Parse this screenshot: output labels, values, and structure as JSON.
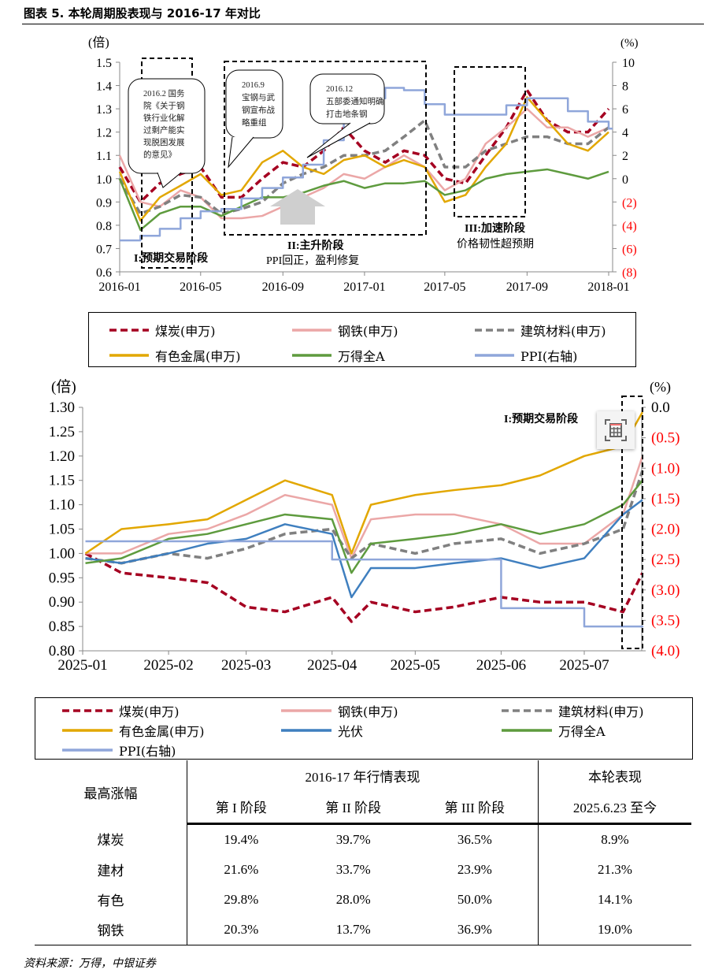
{
  "title": "图表 5. 本轮周期股表现与 2016-17 年对比",
  "colors": {
    "coal": "#A50021",
    "steel": "#EBA7A7",
    "building": "#808080",
    "nonferrous": "#E2A700",
    "winda": "#5E9B3E",
    "ppi": "#8FA6DA",
    "pv": "#3F7FBF",
    "negative_tick": "#FF0000"
  },
  "chart_data": [
    {
      "type": "line",
      "ylabel_left": "(倍)",
      "ylabel_right": "(%)",
      "x_ticks": [
        "2016-01",
        "2016-05",
        "2016-09",
        "2017-01",
        "2017-05",
        "2017-09",
        "2018-01"
      ],
      "ylim_left": [
        0.6,
        1.5
      ],
      "y_ticks_left": [
        "0.6",
        "0.7",
        "0.8",
        "0.9",
        "1.0",
        "1.1",
        "1.2",
        "1.3",
        "1.4",
        "1.5"
      ],
      "ylim_right": [
        -8,
        10
      ],
      "y_ticks_right": [
        "(8)",
        "(6)",
        "(4)",
        "(2)",
        "0",
        "2",
        "4",
        "6",
        "8",
        "10"
      ],
      "x": [
        "2016-01",
        "2016-02",
        "2016-03",
        "2016-04",
        "2016-05",
        "2016-06",
        "2016-07",
        "2016-08",
        "2016-09",
        "2016-10",
        "2016-11",
        "2016-12",
        "2017-01",
        "2017-02",
        "2017-03",
        "2017-04",
        "2017-05",
        "2017-06",
        "2017-07",
        "2017-08",
        "2017-09",
        "2017-10",
        "2017-11",
        "2017-12",
        "2018-01"
      ],
      "series": [
        {
          "name": "煤炭(申万)",
          "key": "coal",
          "axis": "left",
          "style": "dashed",
          "values": [
            1.05,
            0.9,
            0.98,
            1.02,
            1.05,
            0.92,
            0.92,
            1.0,
            1.07,
            1.05,
            1.12,
            1.22,
            1.12,
            1.07,
            1.12,
            1.1,
            1.0,
            0.98,
            1.1,
            1.22,
            1.38,
            1.25,
            1.2,
            1.2,
            1.3
          ]
        },
        {
          "name": "钢铁(申万)",
          "key": "steel",
          "axis": "left",
          "style": "solid",
          "values": [
            1.1,
            0.9,
            0.88,
            0.95,
            0.92,
            0.83,
            0.83,
            0.84,
            0.88,
            0.92,
            0.96,
            1.02,
            1.0,
            1.05,
            1.1,
            1.05,
            0.95,
            1.0,
            1.15,
            1.22,
            1.3,
            1.22,
            1.22,
            1.18,
            1.22
          ]
        },
        {
          "name": "建筑材料(申万)",
          "key": "building",
          "axis": "left",
          "style": "dashed",
          "values": [
            1.0,
            0.85,
            0.88,
            0.93,
            0.92,
            0.85,
            0.87,
            0.9,
            0.98,
            1.02,
            1.05,
            1.1,
            1.1,
            1.12,
            1.18,
            1.25,
            1.05,
            1.05,
            1.12,
            1.15,
            1.18,
            1.18,
            1.15,
            1.15,
            1.22
          ]
        },
        {
          "name": "有色金属(申万)",
          "key": "nonferrous",
          "axis": "left",
          "style": "solid",
          "values": [
            1.03,
            0.82,
            0.92,
            0.97,
            1.02,
            0.93,
            0.95,
            1.07,
            1.12,
            1.05,
            1.02,
            1.08,
            1.1,
            1.05,
            1.08,
            1.05,
            0.9,
            0.93,
            1.05,
            1.15,
            1.35,
            1.25,
            1.15,
            1.12,
            1.2
          ]
        },
        {
          "name": "万得全A",
          "key": "winda",
          "axis": "left",
          "style": "solid",
          "values": [
            1.0,
            0.78,
            0.85,
            0.88,
            0.88,
            0.84,
            0.88,
            0.92,
            0.92,
            0.94,
            0.97,
            0.99,
            0.96,
            0.98,
            0.98,
            0.99,
            0.93,
            0.95,
            1.0,
            1.02,
            1.03,
            1.04,
            1.02,
            1.0,
            1.03
          ]
        },
        {
          "name": "PPI(右轴)",
          "key": "ppi",
          "axis": "right",
          "style": "step",
          "values": [
            -5.3,
            -4.9,
            -4.3,
            -3.4,
            -2.8,
            -2.6,
            -1.7,
            -0.8,
            0.1,
            1.2,
            3.3,
            5.5,
            6.9,
            7.8,
            7.6,
            6.4,
            5.5,
            5.5,
            5.5,
            6.3,
            6.9,
            6.9,
            5.8,
            4.9,
            4.3
          ]
        }
      ],
      "annotations": {
        "stage1": "I:预期交易阶段",
        "stage2": "II:主升阶段",
        "stage2_sub": "PPI回正，盈利修复",
        "stage3": "III:加速阶段",
        "stage3_sub": "价格韧性超预期",
        "bubble1": [
          "2016.2 国务",
          "院《关于钢",
          "铁行业化解",
          "过剩产能实",
          "现脱困发展",
          "的意见》"
        ],
        "bubble2": [
          "2016.9",
          "宝钢与武",
          "钢宣布战",
          "略重组"
        ],
        "bubble3": [
          "2016.12",
          "五部委通知明确",
          "打击地条钢"
        ]
      }
    },
    {
      "type": "line",
      "ylabel_left": "(倍)",
      "ylabel_right": "(%)",
      "x_ticks": [
        "2025-01",
        "2025-02",
        "2025-03",
        "2025-04",
        "2025-05",
        "2025-06",
        "2025-07"
      ],
      "ylim_left": [
        0.8,
        1.3
      ],
      "y_ticks_left": [
        "0.80",
        "0.85",
        "0.90",
        "0.95",
        "1.00",
        "1.05",
        "1.10",
        "1.15",
        "1.20",
        "1.25",
        "1.30"
      ],
      "ylim_right": [
        -4.0,
        0.0
      ],
      "y_ticks_right": [
        "(4.0)",
        "(3.5)",
        "(3.0)",
        "(2.5)",
        "(2.0)",
        "(1.5)",
        "(1.0)",
        "(0.5)",
        "0.0"
      ],
      "x": [
        "2025-01-02",
        "2025-01-15",
        "2025-02-01",
        "2025-02-15",
        "2025-03-01",
        "2025-03-15",
        "2025-04-01",
        "2025-04-08",
        "2025-04-15",
        "2025-05-01",
        "2025-05-15",
        "2025-06-01",
        "2025-06-15",
        "2025-07-01",
        "2025-07-15",
        "2025-07-22"
      ],
      "series": [
        {
          "name": "煤炭(申万)",
          "key": "coal",
          "axis": "left",
          "style": "dashed",
          "values": [
            1.0,
            0.96,
            0.95,
            0.94,
            0.89,
            0.88,
            0.91,
            0.86,
            0.9,
            0.88,
            0.89,
            0.91,
            0.9,
            0.9,
            0.88,
            0.96
          ]
        },
        {
          "name": "钢铁(申万)",
          "key": "steel",
          "axis": "left",
          "style": "solid",
          "values": [
            1.0,
            1.0,
            1.04,
            1.05,
            1.08,
            1.12,
            1.1,
            0.99,
            1.07,
            1.08,
            1.08,
            1.06,
            1.02,
            1.02,
            1.08,
            1.2
          ]
        },
        {
          "name": "建筑材料(申万)",
          "key": "building",
          "axis": "left",
          "style": "dashed",
          "values": [
            0.99,
            0.98,
            1.0,
            0.99,
            1.01,
            1.04,
            1.05,
            0.99,
            1.02,
            1.0,
            1.02,
            1.03,
            1.0,
            1.02,
            1.05,
            1.17
          ]
        },
        {
          "name": "有色金属(申万)",
          "key": "nonferrous",
          "axis": "left",
          "style": "solid",
          "values": [
            1.0,
            1.05,
            1.06,
            1.07,
            1.11,
            1.15,
            1.12,
            1.0,
            1.1,
            1.12,
            1.13,
            1.14,
            1.16,
            1.2,
            1.22,
            1.29
          ]
        },
        {
          "name": "光伏",
          "key": "pv",
          "axis": "left",
          "style": "solid",
          "values": [
            0.99,
            0.98,
            1.0,
            1.02,
            1.03,
            1.06,
            1.04,
            0.91,
            0.97,
            0.97,
            0.98,
            0.99,
            0.97,
            0.99,
            1.08,
            1.11
          ]
        },
        {
          "name": "万得全A",
          "key": "winda",
          "axis": "left",
          "style": "solid",
          "values": [
            0.98,
            0.99,
            1.03,
            1.04,
            1.06,
            1.08,
            1.07,
            0.96,
            1.02,
            1.03,
            1.04,
            1.06,
            1.04,
            1.06,
            1.1,
            1.15
          ]
        },
        {
          "name": "PPI(右轴)",
          "key": "ppi",
          "axis": "right",
          "style": "step",
          "values": [
            -2.2,
            -2.2,
            -2.2,
            -2.2,
            -2.2,
            -2.2,
            -2.5,
            -2.5,
            -2.5,
            -2.5,
            -2.5,
            -3.3,
            -3.3,
            -3.6,
            -3.6,
            -3.6
          ]
        }
      ],
      "annotations": {
        "stage1": "I:预期交易阶段"
      }
    }
  ],
  "legend_top": [
    "煤炭(申万)",
    "钢铁(申万)",
    "建筑材料(申万)",
    "有色金属(申万)",
    "万得全A",
    "PPI(右轴)"
  ],
  "legend_bottom": [
    "煤炭(申万)",
    "钢铁(申万)",
    "建筑材料(申万)",
    "有色金属(申万)",
    "光伏",
    "万得全A",
    "PPI(右轴)"
  ],
  "table": {
    "header_left": "最高涨幅",
    "group1": "2016-17 年行情表现",
    "group2": "本轮表现",
    "cols": [
      "第 I 阶段",
      "第 II 阶段",
      "第 III 阶段",
      "2025.6.23 至今"
    ],
    "rows": [
      {
        "name": "煤炭",
        "values": [
          "19.4%",
          "39.7%",
          "36.5%",
          "8.9%"
        ]
      },
      {
        "name": "建材",
        "values": [
          "21.6%",
          "33.7%",
          "23.9%",
          "21.3%"
        ]
      },
      {
        "name": "有色",
        "values": [
          "29.8%",
          "28.0%",
          "50.0%",
          "14.1%"
        ]
      },
      {
        "name": "钢铁",
        "values": [
          "20.3%",
          "13.7%",
          "36.9%",
          "19.0%"
        ]
      }
    ]
  },
  "source": "资料来源：万得，中银证券",
  "overlay_icon": "table-capture-icon"
}
